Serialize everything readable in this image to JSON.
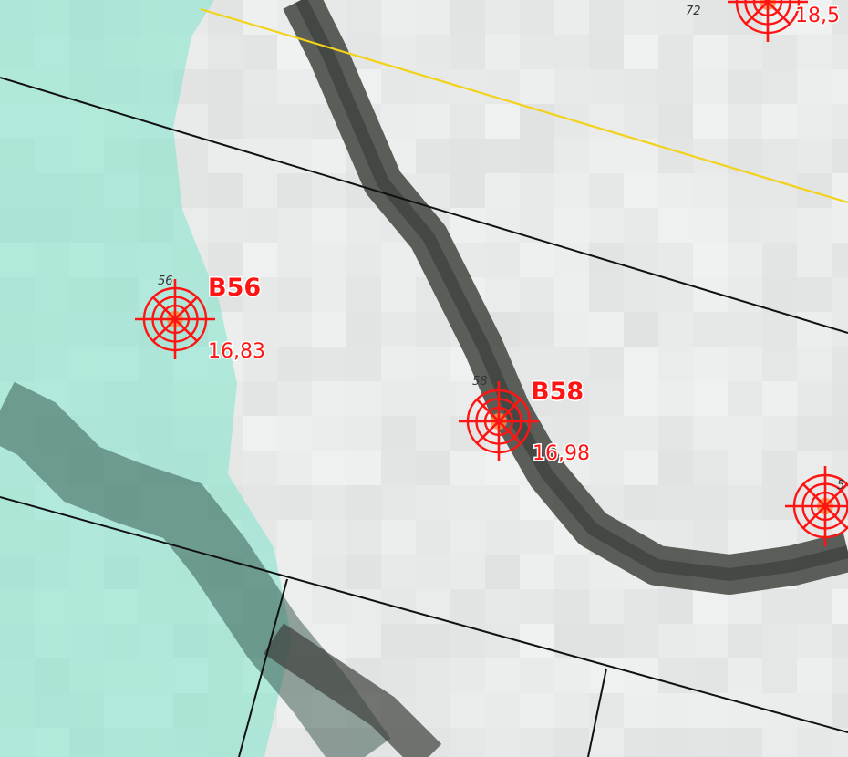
{
  "map": {
    "colors": {
      "marker": "#ff1414",
      "marker_fill": "#ff8c3c",
      "water": "#7fe3cc",
      "road": "#4a4e48",
      "land": "#e9ecea",
      "boundary": "#111111",
      "yellow_line": "#f2d21a"
    },
    "points": [
      {
        "id": "B56",
        "name": "B56",
        "value": "16,83",
        "small_label": "56",
        "icon": "survey-target-icon"
      },
      {
        "id": "B58",
        "name": "B58",
        "value": "16,98",
        "small_label": "58",
        "icon": "survey-target-icon"
      },
      {
        "id": "top",
        "name": "",
        "value": "18,5",
        "small_label": "72",
        "icon": "survey-target-icon"
      },
      {
        "id": "right",
        "name": "",
        "value": "",
        "small_label": "5",
        "icon": "survey-target-icon"
      }
    ]
  }
}
